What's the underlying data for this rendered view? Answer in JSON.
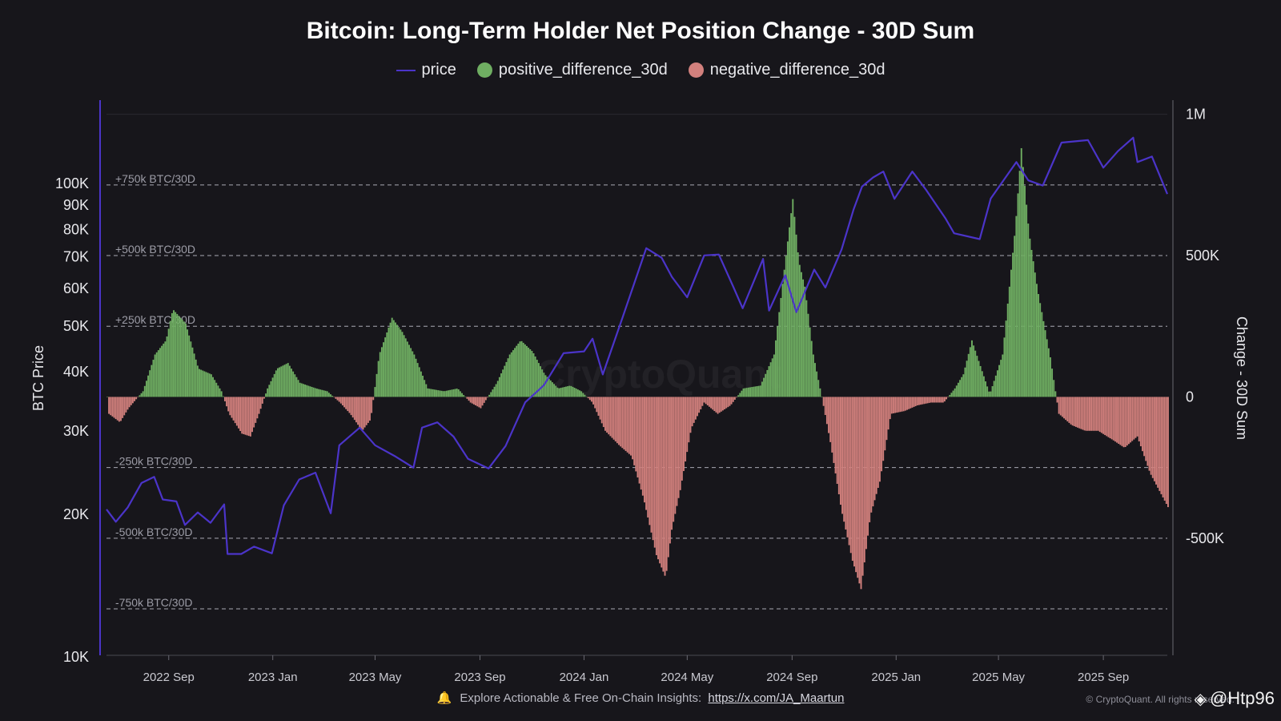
{
  "chart_data": {
    "type": "bar",
    "title": "Bitcoin: Long-Term Holder Net Position Change - 30D Sum",
    "legend": {
      "position": "top-center",
      "items": [
        {
          "name": "price",
          "color": "#4b34c9",
          "marker": "line"
        },
        {
          "name": "positive_difference_30d",
          "color": "#6fae62",
          "marker": "dot"
        },
        {
          "name": "negative_difference_30d",
          "color": "#d2807d",
          "marker": "dot"
        }
      ]
    },
    "x_axis": {
      "type": "date",
      "range": [
        "2022-06-20",
        "2025-11-15"
      ],
      "tick_labels": [
        {
          "label": "2022 Sep",
          "date": "2022-09-01"
        },
        {
          "label": "2023 Jan",
          "date": "2023-01-01"
        },
        {
          "label": "2023 May",
          "date": "2023-05-01"
        },
        {
          "label": "2023 Sep",
          "date": "2023-09-01"
        },
        {
          "label": "2024 Jan",
          "date": "2024-01-01"
        },
        {
          "label": "2024 May",
          "date": "2024-05-01"
        },
        {
          "label": "2024 Sep",
          "date": "2024-09-01"
        },
        {
          "label": "2025 Jan",
          "date": "2025-01-01"
        },
        {
          "label": "2025 May",
          "date": "2025-05-01"
        },
        {
          "label": "2025 Sep",
          "date": "2025-09-01"
        }
      ]
    },
    "y_left": {
      "label": "BTC Price",
      "scale": "log",
      "range": [
        10000,
        150000
      ],
      "ticks": [
        {
          "label": "10K",
          "value": 10000
        },
        {
          "label": "20K",
          "value": 20000
        },
        {
          "label": "30K",
          "value": 30000
        },
        {
          "label": "40K",
          "value": 40000
        },
        {
          "label": "50K",
          "value": 50000
        },
        {
          "label": "60K",
          "value": 60000
        },
        {
          "label": "70K",
          "value": 70000
        },
        {
          "label": "80K",
          "value": 80000
        },
        {
          "label": "90K",
          "value": 90000
        },
        {
          "label": "100K",
          "value": 100000
        }
      ]
    },
    "y_right": {
      "label": "Change - 30D Sum",
      "scale": "linear",
      "range": [
        -920000,
        1050000
      ],
      "ticks": [
        {
          "label": "1M",
          "value": 1000000
        },
        {
          "label": "500K",
          "value": 500000
        },
        {
          "label": "0",
          "value": 0
        },
        {
          "label": "-500K",
          "value": -500000
        }
      ]
    },
    "reference_lines": [
      {
        "label": "+750k BTC/30D",
        "value": 750000
      },
      {
        "label": "+500k BTC/30D",
        "value": 500000
      },
      {
        "label": "+250k BTC/30D",
        "value": 250000
      },
      {
        "label": "-250k BTC/30D",
        "value": -250000
      },
      {
        "label": "-500k BTC/30D",
        "value": -500000
      },
      {
        "label": "-750k BTC/30D",
        "value": -750000
      }
    ],
    "price_series": {
      "name": "price",
      "points": [
        [
          "2022-06-20",
          20500
        ],
        [
          "2022-07-01",
          19300
        ],
        [
          "2022-07-15",
          20700
        ],
        [
          "2022-07-31",
          23300
        ],
        [
          "2022-08-15",
          24000
        ],
        [
          "2022-08-25",
          21500
        ],
        [
          "2022-09-10",
          21300
        ],
        [
          "2022-09-20",
          19000
        ],
        [
          "2022-10-05",
          20200
        ],
        [
          "2022-10-20",
          19200
        ],
        [
          "2022-11-05",
          21000
        ],
        [
          "2022-11-09",
          16500
        ],
        [
          "2022-11-25",
          16500
        ],
        [
          "2022-12-10",
          17100
        ],
        [
          "2022-12-31",
          16550
        ],
        [
          "2023-01-14",
          20900
        ],
        [
          "2023-02-01",
          23700
        ],
        [
          "2023-02-20",
          24500
        ],
        [
          "2023-03-10",
          20100
        ],
        [
          "2023-03-20",
          28000
        ],
        [
          "2023-04-13",
          30500
        ],
        [
          "2023-05-01",
          28000
        ],
        [
          "2023-05-25",
          26500
        ],
        [
          "2023-06-15",
          25100
        ],
        [
          "2023-06-25",
          30500
        ],
        [
          "2023-07-13",
          31300
        ],
        [
          "2023-08-01",
          29200
        ],
        [
          "2023-08-18",
          26200
        ],
        [
          "2023-09-11",
          25000
        ],
        [
          "2023-10-01",
          27900
        ],
        [
          "2023-10-24",
          34500
        ],
        [
          "2023-11-15",
          37500
        ],
        [
          "2023-12-08",
          43800
        ],
        [
          "2024-01-01",
          44200
        ],
        [
          "2024-01-11",
          47000
        ],
        [
          "2024-01-23",
          39500
        ],
        [
          "2024-02-15",
          52000
        ],
        [
          "2024-03-01",
          62400
        ],
        [
          "2024-03-14",
          73000
        ],
        [
          "2024-04-01",
          69700
        ],
        [
          "2024-04-13",
          63500
        ],
        [
          "2024-05-01",
          57500
        ],
        [
          "2024-05-21",
          70500
        ],
        [
          "2024-06-07",
          70800
        ],
        [
          "2024-06-24",
          60500
        ],
        [
          "2024-07-05",
          54500
        ],
        [
          "2024-07-29",
          69300
        ],
        [
          "2024-08-05",
          53900
        ],
        [
          "2024-08-24",
          64000
        ],
        [
          "2024-09-06",
          53500
        ],
        [
          "2024-09-27",
          65800
        ],
        [
          "2024-10-10",
          60300
        ],
        [
          "2024-10-29",
          72500
        ],
        [
          "2024-11-12",
          88000
        ],
        [
          "2024-11-22",
          98500
        ],
        [
          "2024-12-05",
          103000
        ],
        [
          "2024-12-17",
          106000
        ],
        [
          "2024-12-30",
          92800
        ],
        [
          "2025-01-20",
          106000
        ],
        [
          "2025-02-05",
          97000
        ],
        [
          "2025-02-28",
          84300
        ],
        [
          "2025-03-10",
          78500
        ],
        [
          "2025-04-09",
          76300
        ],
        [
          "2025-04-22",
          93000
        ],
        [
          "2025-05-22",
          111000
        ],
        [
          "2025-06-05",
          101500
        ],
        [
          "2025-06-22",
          99000
        ],
        [
          "2025-07-14",
          122000
        ],
        [
          "2025-08-14",
          123500
        ],
        [
          "2025-09-01",
          108000
        ],
        [
          "2025-09-18",
          117000
        ],
        [
          "2025-10-06",
          125000
        ],
        [
          "2025-10-11",
          111000
        ],
        [
          "2025-10-28",
          114000
        ],
        [
          "2025-11-15",
          95000
        ]
      ]
    },
    "net_change_series": {
      "name": "positive_difference_30d / negative_difference_30d",
      "points": [
        [
          "2022-06-20",
          0
        ],
        [
          "2022-06-22",
          -60000
        ],
        [
          "2022-07-05",
          -90000
        ],
        [
          "2022-07-15",
          -40000
        ],
        [
          "2022-08-01",
          20000
        ],
        [
          "2022-08-15",
          150000
        ],
        [
          "2022-08-28",
          200000
        ],
        [
          "2022-09-05",
          310000
        ],
        [
          "2022-09-20",
          260000
        ],
        [
          "2022-10-05",
          100000
        ],
        [
          "2022-10-20",
          80000
        ],
        [
          "2022-11-01",
          20000
        ],
        [
          "2022-11-10",
          -60000
        ],
        [
          "2022-11-25",
          -130000
        ],
        [
          "2022-12-05",
          -140000
        ],
        [
          "2022-12-15",
          -60000
        ],
        [
          "2022-12-25",
          30000
        ],
        [
          "2023-01-05",
          100000
        ],
        [
          "2023-01-18",
          120000
        ],
        [
          "2023-02-01",
          50000
        ],
        [
          "2023-02-20",
          30000
        ],
        [
          "2023-03-05",
          20000
        ],
        [
          "2023-03-20",
          -20000
        ],
        [
          "2023-04-01",
          -60000
        ],
        [
          "2023-04-15",
          -120000
        ],
        [
          "2023-04-25",
          -80000
        ],
        [
          "2023-05-05",
          150000
        ],
        [
          "2023-05-20",
          280000
        ],
        [
          "2023-06-01",
          230000
        ],
        [
          "2023-06-15",
          150000
        ],
        [
          "2023-07-01",
          30000
        ],
        [
          "2023-07-20",
          20000
        ],
        [
          "2023-08-05",
          30000
        ],
        [
          "2023-08-20",
          -20000
        ],
        [
          "2023-09-01",
          -40000
        ],
        [
          "2023-09-20",
          50000
        ],
        [
          "2023-10-05",
          150000
        ],
        [
          "2023-10-18",
          200000
        ],
        [
          "2023-11-01",
          160000
        ],
        [
          "2023-11-15",
          80000
        ],
        [
          "2023-12-01",
          30000
        ],
        [
          "2023-12-15",
          40000
        ],
        [
          "2023-12-28",
          20000
        ],
        [
          "2024-01-10",
          -20000
        ],
        [
          "2024-01-25",
          -120000
        ],
        [
          "2024-02-10",
          -170000
        ],
        [
          "2024-02-25",
          -210000
        ],
        [
          "2024-03-10",
          -360000
        ],
        [
          "2024-03-25",
          -560000
        ],
        [
          "2024-04-05",
          -640000
        ],
        [
          "2024-04-12",
          -470000
        ],
        [
          "2024-04-22",
          -330000
        ],
        [
          "2024-05-05",
          -110000
        ],
        [
          "2024-05-20",
          -20000
        ],
        [
          "2024-06-05",
          -60000
        ],
        [
          "2024-06-20",
          -30000
        ],
        [
          "2024-07-05",
          30000
        ],
        [
          "2024-07-25",
          40000
        ],
        [
          "2024-08-10",
          150000
        ],
        [
          "2024-08-22",
          450000
        ],
        [
          "2024-09-01",
          700000
        ],
        [
          "2024-09-08",
          480000
        ],
        [
          "2024-09-15",
          390000
        ],
        [
          "2024-09-25",
          150000
        ],
        [
          "2024-10-05",
          0
        ],
        [
          "2024-10-15",
          -160000
        ],
        [
          "2024-10-28",
          -400000
        ],
        [
          "2024-11-10",
          -580000
        ],
        [
          "2024-11-20",
          -680000
        ],
        [
          "2024-12-01",
          -420000
        ],
        [
          "2024-12-12",
          -300000
        ],
        [
          "2024-12-25",
          -60000
        ],
        [
          "2025-01-10",
          -50000
        ],
        [
          "2025-01-25",
          -30000
        ],
        [
          "2025-02-10",
          -20000
        ],
        [
          "2025-02-25",
          -20000
        ],
        [
          "2025-03-10",
          30000
        ],
        [
          "2025-03-20",
          80000
        ],
        [
          "2025-03-30",
          200000
        ],
        [
          "2025-04-10",
          100000
        ],
        [
          "2025-04-20",
          10000
        ],
        [
          "2025-05-05",
          150000
        ],
        [
          "2025-05-20",
          600000
        ],
        [
          "2025-05-27",
          880000
        ],
        [
          "2025-06-05",
          580000
        ],
        [
          "2025-06-15",
          380000
        ],
        [
          "2025-06-30",
          140000
        ],
        [
          "2025-07-10",
          -60000
        ],
        [
          "2025-07-25",
          -100000
        ],
        [
          "2025-08-10",
          -120000
        ],
        [
          "2025-08-25",
          -120000
        ],
        [
          "2025-09-10",
          -150000
        ],
        [
          "2025-09-25",
          -180000
        ],
        [
          "2025-10-10",
          -140000
        ],
        [
          "2025-10-25",
          -270000
        ],
        [
          "2025-11-15",
          -390000
        ]
      ]
    },
    "grid": false
  },
  "background_watermark": "CryptoQuant",
  "footer": {
    "text": "Explore Actionable & Free On-Chain Insights:",
    "link": "https://x.com/JA_Maartun"
  },
  "copyright": "© CryptoQuant. All rights reserved.",
  "user_watermark": "@Htp96"
}
